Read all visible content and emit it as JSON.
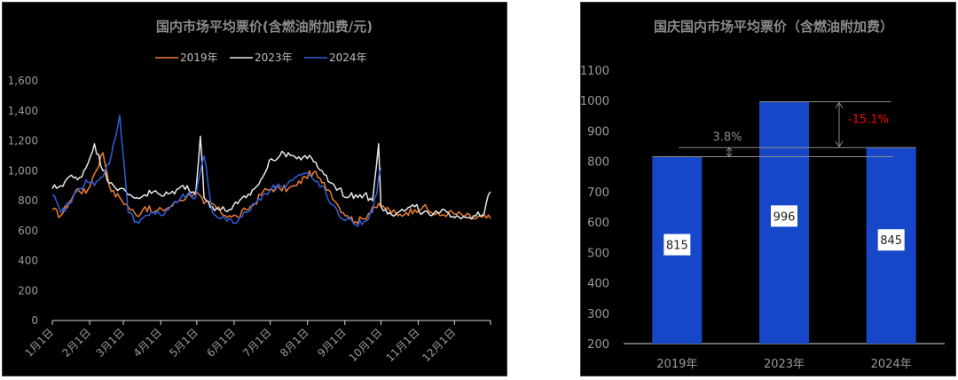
{
  "chart_data": [
    {
      "type": "line",
      "title": "国内市场平均票价(含燃油附加费/元)",
      "ylim": [
        0,
        1600
      ],
      "yticks": [
        "0",
        "200",
        "400",
        "600",
        "800",
        "1,000",
        "1,200",
        "1,400",
        "1,600"
      ],
      "xticklabels": [
        "1月1日",
        "2月1日",
        "3月1日",
        "4月1日",
        "5月1日",
        "6月1日",
        "7月1日",
        "8月1日",
        "9月1日",
        "10月1日",
        "11月1日",
        "12月1日"
      ],
      "legend_position": "top-center",
      "series": [
        {
          "name": "2019年",
          "color": "#ED7D31",
          "x_days": [
            1,
            8,
            15,
            22,
            29,
            36,
            43,
            50,
            57,
            64,
            71,
            78,
            85,
            92,
            99,
            106,
            113,
            120,
            127,
            134,
            141,
            148,
            155,
            162,
            169,
            176,
            183,
            190,
            197,
            204,
            211,
            218,
            225,
            232,
            239,
            246,
            253,
            260,
            267,
            274,
            281,
            288,
            295,
            302,
            309,
            316,
            323,
            330,
            337,
            344,
            351,
            358,
            365
          ],
          "values": [
            740,
            700,
            790,
            880,
            850,
            980,
            1120,
            860,
            820,
            760,
            700,
            760,
            720,
            740,
            760,
            800,
            830,
            860,
            780,
            780,
            720,
            700,
            690,
            740,
            780,
            860,
            880,
            880,
            880,
            900,
            960,
            990,
            920,
            860,
            760,
            700,
            660,
            680,
            760,
            760,
            740,
            700,
            720,
            740,
            760,
            720,
            700,
            720,
            710,
            700,
            680,
            690,
            680
          ]
        },
        {
          "name": "2023年",
          "color": "#E8E8E8",
          "x_days": [
            1,
            8,
            15,
            22,
            29,
            36,
            43,
            50,
            57,
            64,
            71,
            78,
            85,
            92,
            99,
            106,
            113,
            120,
            124,
            127,
            134,
            141,
            148,
            155,
            162,
            169,
            176,
            183,
            190,
            197,
            204,
            211,
            218,
            225,
            232,
            239,
            246,
            253,
            260,
            267,
            272,
            274,
            278,
            281,
            288,
            295,
            302,
            309,
            316,
            323,
            330,
            337,
            344,
            351,
            358,
            365
          ],
          "values": [
            880,
            900,
            960,
            940,
            1020,
            1180,
            1000,
            920,
            880,
            840,
            820,
            840,
            860,
            830,
            850,
            880,
            900,
            840,
            1230,
            820,
            760,
            740,
            740,
            780,
            820,
            880,
            960,
            1080,
            1100,
            1120,
            1080,
            1100,
            1060,
            1000,
            920,
            880,
            820,
            840,
            840,
            800,
            1180,
            760,
            740,
            720,
            720,
            740,
            760,
            720,
            700,
            720,
            720,
            700,
            690,
            700,
            700,
            860
          ]
        },
        {
          "name": "2024年",
          "color": "#2E5FDB",
          "x_days": [
            1,
            8,
            15,
            22,
            29,
            36,
            43,
            50,
            57,
            60,
            64,
            71,
            78,
            85,
            92,
            99,
            106,
            113,
            120,
            127,
            134,
            141,
            148,
            155,
            162,
            169,
            176,
            183,
            190,
            197,
            204,
            211,
            218,
            225,
            232,
            239,
            246,
            253,
            260,
            267,
            274
          ],
          "values": [
            840,
            720,
            780,
            860,
            940,
            900,
            960,
            1100,
            1370,
            1100,
            720,
            660,
            700,
            720,
            700,
            760,
            800,
            840,
            820,
            1100,
            720,
            680,
            680,
            660,
            720,
            780,
            840,
            880,
            900,
            920,
            960,
            980,
            940,
            900,
            780,
            700,
            680,
            640,
            660,
            720,
            1020
          ]
        }
      ]
    },
    {
      "type": "bar",
      "title": "国庆国内市场平均票价（含燃油附加费）",
      "categories": [
        "2019年",
        "2023年",
        "2024年"
      ],
      "values": [
        815,
        996,
        845
      ],
      "data_labels": [
        "815",
        "996",
        "845"
      ],
      "ylim": [
        200,
        1100
      ],
      "yticks": [
        "200",
        "300",
        "400",
        "500",
        "600",
        "700",
        "800",
        "900",
        "1000",
        "1100"
      ],
      "bar_color": "#1747C9",
      "annotations": [
        {
          "text": "3.8%",
          "color": "#8C8C8C",
          "from": "2019年",
          "to": "2024年"
        },
        {
          "text": "-15.1%",
          "color": "#FF0000",
          "from": "2023年",
          "to": "2024年"
        }
      ]
    }
  ]
}
